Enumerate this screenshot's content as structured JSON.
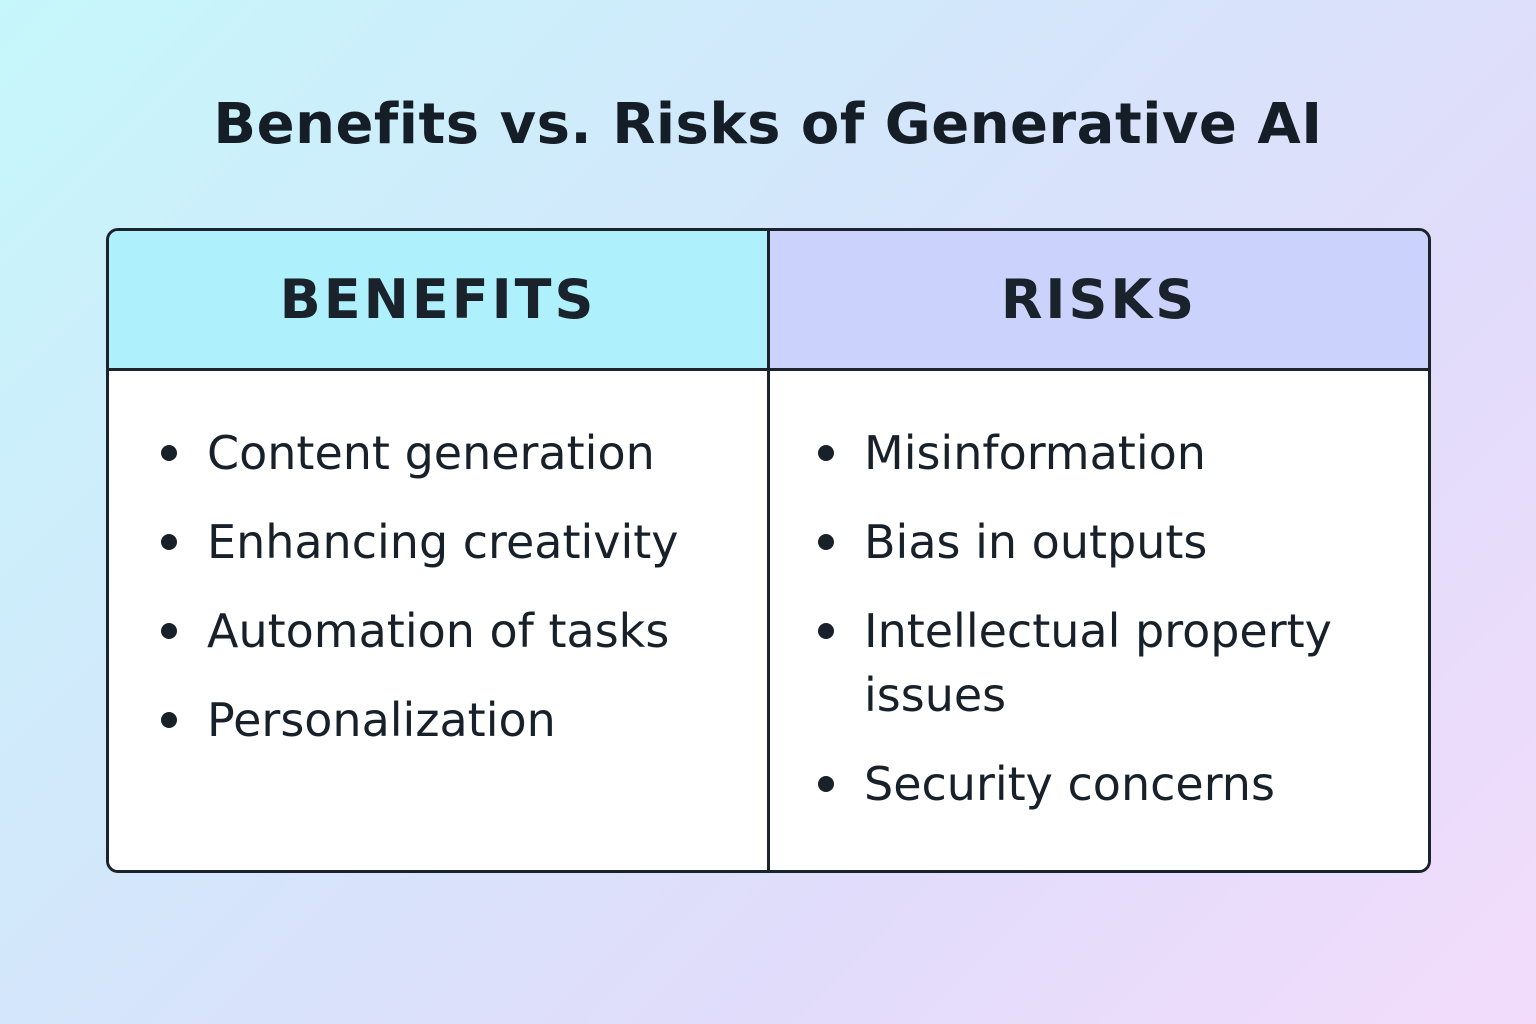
{
  "title": "Benefits vs. Risks of Generative AI",
  "columns": [
    {
      "header": "BENEFITS",
      "header_color": "#aef0fb",
      "items": [
        "Content generation",
        "Enhancing creativity",
        "Automation of tasks",
        "Personalization"
      ]
    },
    {
      "header": "RISKS",
      "header_color": "#cbd2fb",
      "items": [
        "Misinformation",
        "Bias in outputs",
        "Intellectual property issues",
        "Security concerns"
      ]
    }
  ],
  "colors": {
    "text": "#16202a",
    "border": "#1b232c",
    "background_start": "#c6f7fb",
    "background_end": "#f3dcfb"
  }
}
